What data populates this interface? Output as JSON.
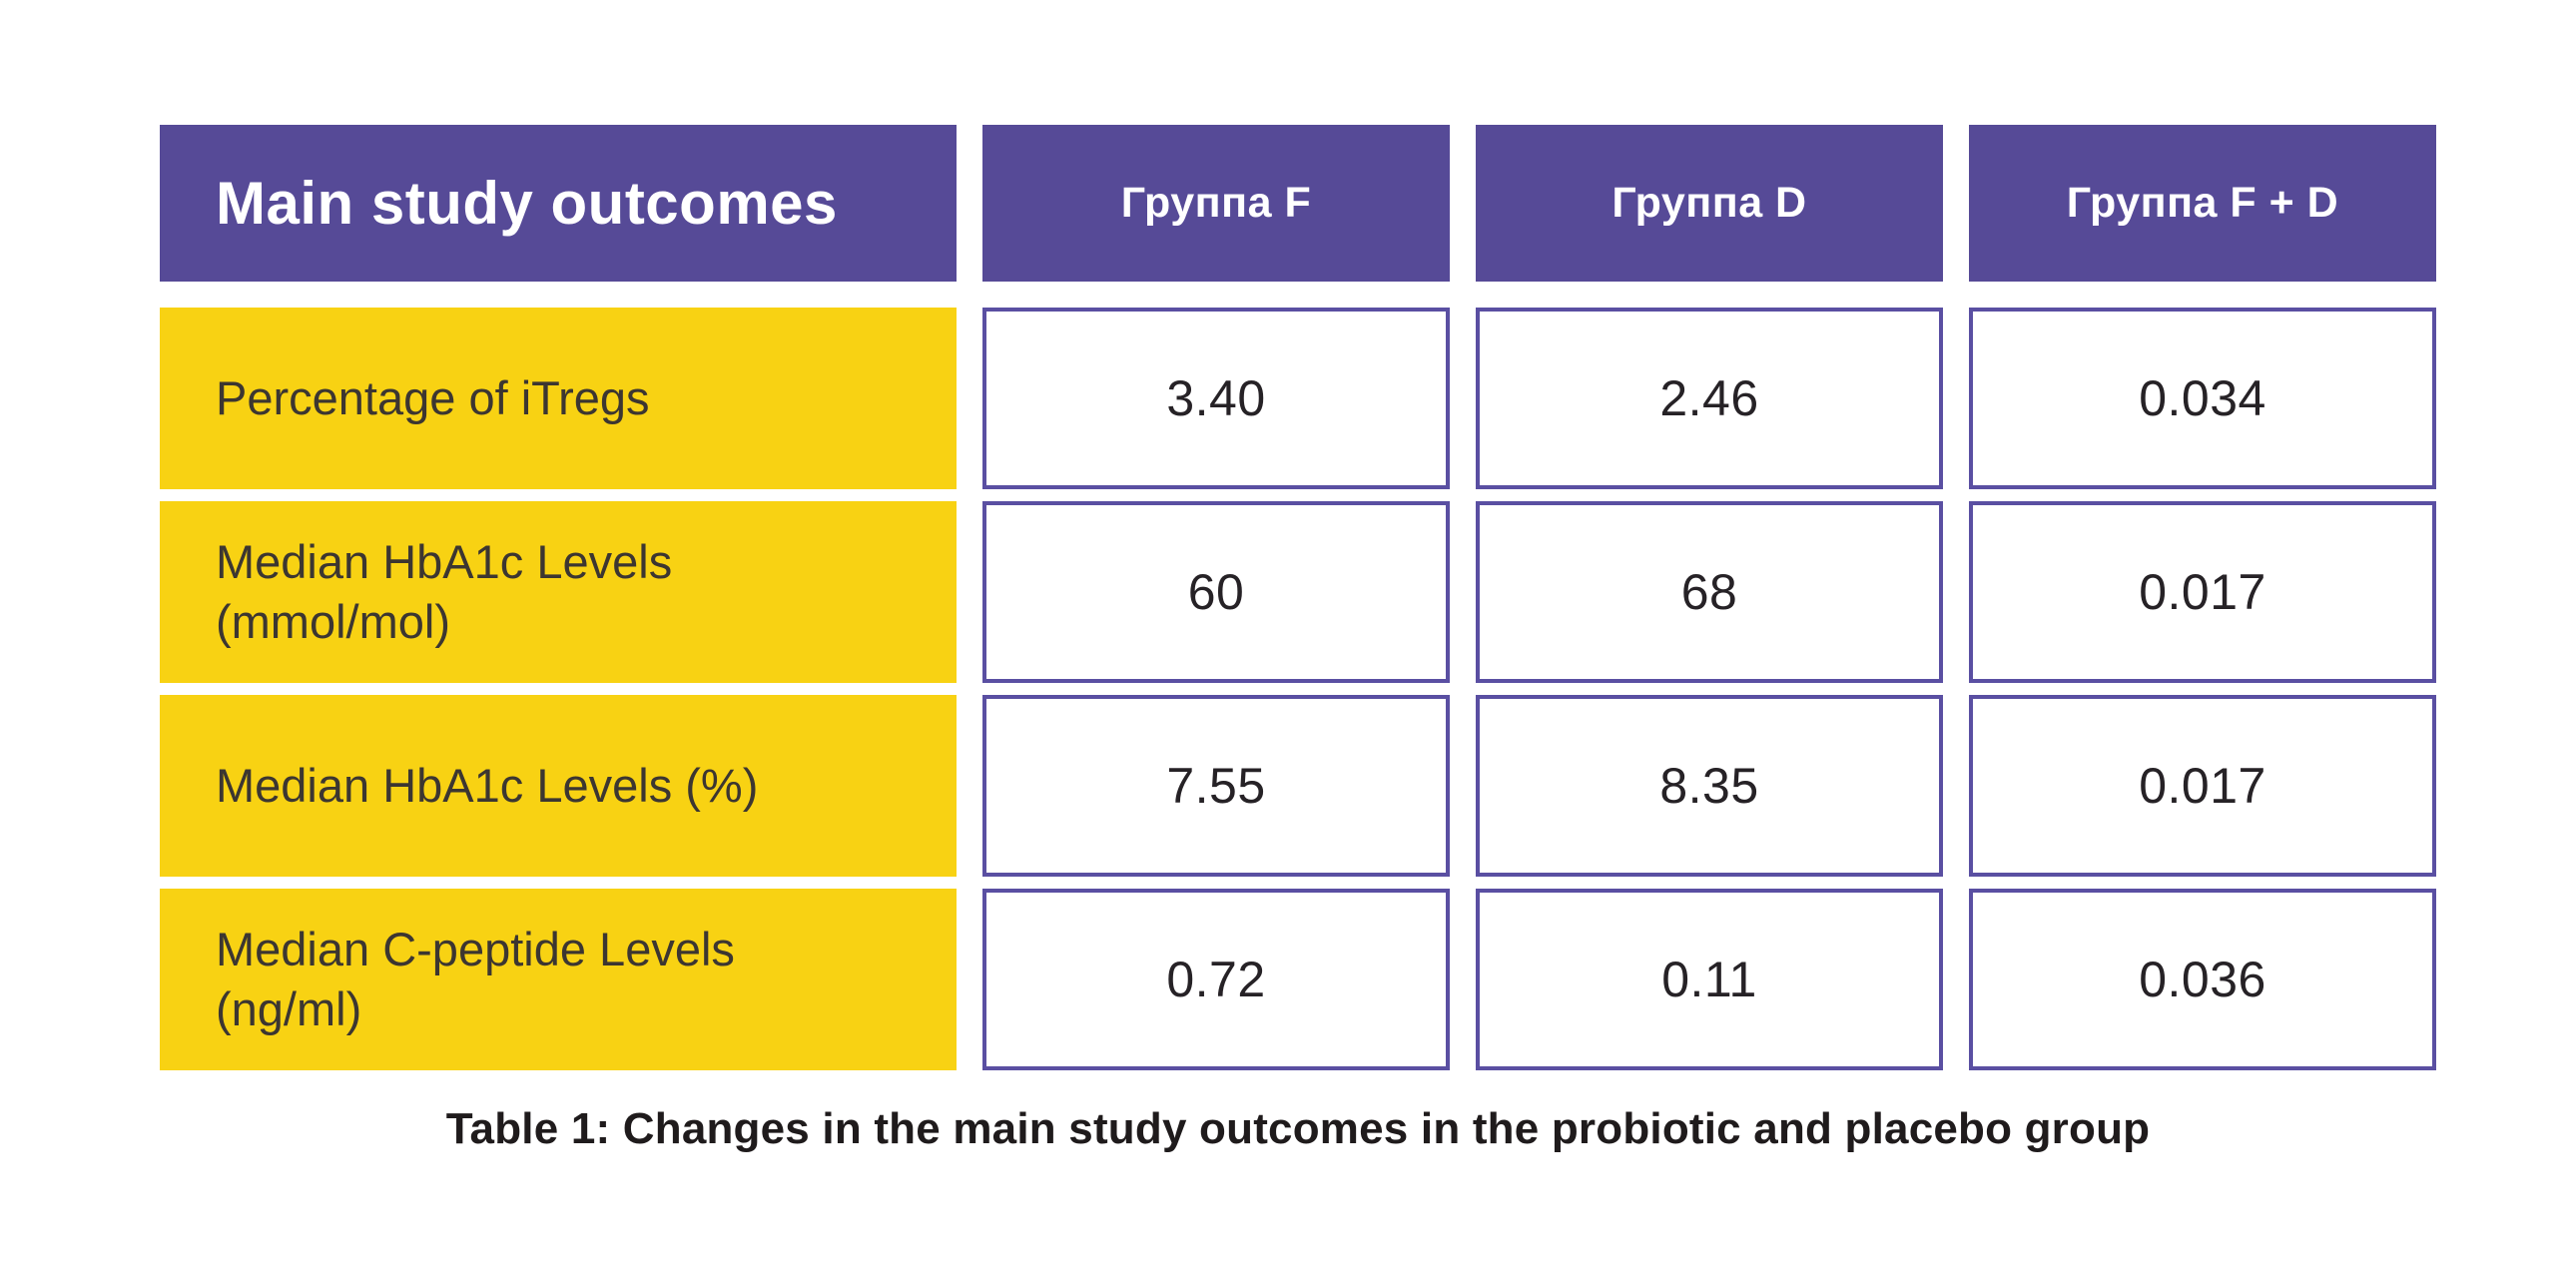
{
  "chart_data": {
    "type": "table",
    "title": "Table 1: Changes in the main study outcomes in the probiotic and placebo group",
    "header": {
      "main_label": "Main study outcomes",
      "columns": [
        "Группа F",
        "Группа D",
        "Группа F + D"
      ]
    },
    "rows": [
      {
        "label": "Percentage of iTregs",
        "values": [
          "3.40",
          "2.46",
          "0.034"
        ]
      },
      {
        "label": "Median HbA1c Levels (mmol/mol)",
        "values": [
          "60",
          "68",
          "0.017"
        ]
      },
      {
        "label": "Median HbA1c Levels (%)",
        "values": [
          "7.55",
          "8.35",
          "0.017"
        ]
      },
      {
        "label": "Median C-peptide Levels (ng/ml)",
        "values": [
          "0.72",
          "0.11",
          "0.036"
        ]
      }
    ],
    "layout_hints": {
      "header_position": "top",
      "row_label_column": "left",
      "grid": "separated-cells"
    },
    "colors": {
      "header_bg": "#564a97",
      "label_bg": "#f8d213",
      "value_border": "#5a4fa2",
      "header_text": "#ffffff",
      "label_text": "#3c3631",
      "value_text": "#262226",
      "caption_text": "#1f1b1c",
      "page_bg": "#ffffff"
    }
  },
  "caption": "Table 1: Changes in the main study outcomes in the probiotic and placebo group"
}
